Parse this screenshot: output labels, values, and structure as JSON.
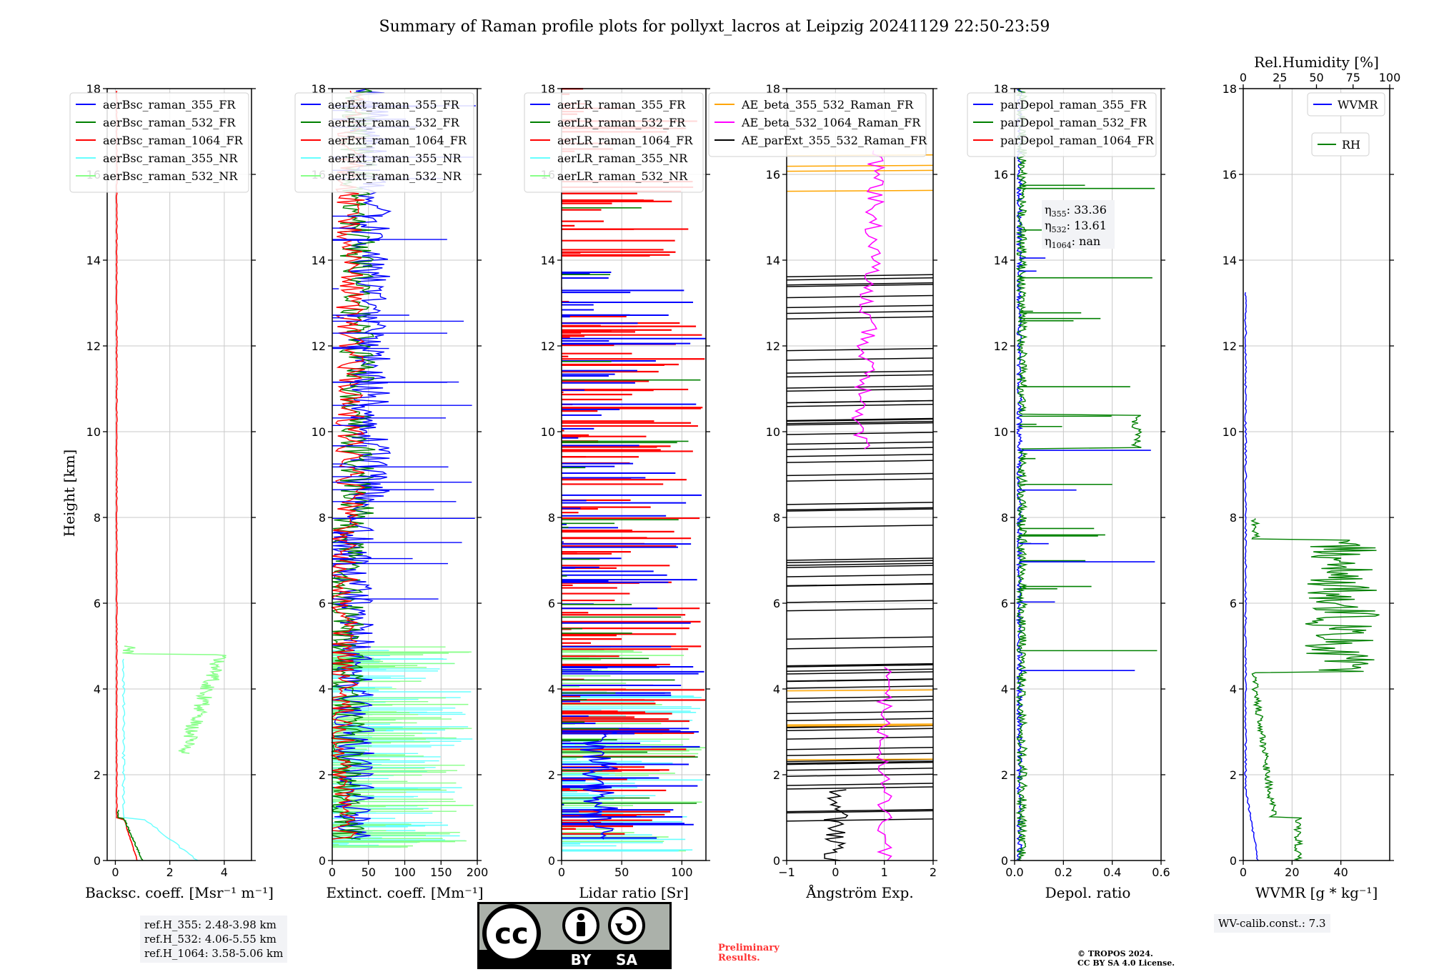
{
  "title": "Summary of Raman profile plots for pollyxt_lacros at Leipzig 20241129 22:50-23:59",
  "ylabel": "Height [km]",
  "y_ticks": [
    "0",
    "2",
    "4",
    "6",
    "8",
    "10",
    "12",
    "14",
    "16",
    "18"
  ],
  "chart_data": [
    {
      "type": "line",
      "xlabel": "Backsc. coeff. [Msr⁻¹ m⁻¹]",
      "xlim": [
        -0.3,
        5
      ],
      "ylim": [
        0,
        18
      ],
      "x_ticks": [
        "0",
        "2",
        "4"
      ],
      "x_tick_values": [
        0,
        2,
        4
      ],
      "legend": [
        "aerBsc_raman_355_FR",
        "aerBsc_raman_532_FR",
        "aerBsc_raman_1064_FR",
        "aerBsc_raman_355_NR",
        "aerBsc_raman_532_NR"
      ],
      "legend_colors": [
        "#0000ff",
        "#008000",
        "#ff0000",
        "#66ffff",
        "#88ff88"
      ],
      "grid": true
    },
    {
      "type": "line",
      "xlabel": "Extinct. coeff. [Mm⁻¹]",
      "xlim": [
        0,
        200
      ],
      "ylim": [
        0,
        18
      ],
      "x_ticks": [
        "0",
        "50",
        "100",
        "150",
        "200"
      ],
      "x_tick_values": [
        0,
        50,
        100,
        150,
        200
      ],
      "legend": [
        "aerExt_raman_355_FR",
        "aerExt_raman_532_FR",
        "aerExt_raman_1064_FR",
        "aerExt_raman_355_NR",
        "aerExt_raman_532_NR"
      ],
      "legend_colors": [
        "#0000ff",
        "#008000",
        "#ff0000",
        "#66ffff",
        "#88ff88"
      ],
      "grid": true
    },
    {
      "type": "line",
      "xlabel": "Lidar ratio [Sr]",
      "xlim": [
        0,
        120
      ],
      "ylim": [
        0,
        18
      ],
      "x_ticks": [
        "0",
        "50",
        "100"
      ],
      "x_tick_values": [
        0,
        50,
        100
      ],
      "legend": [
        "aerLR_raman_355_FR",
        "aerLR_raman_532_FR",
        "aerLR_raman_1064_FR",
        "aerLR_raman_355_NR",
        "aerLR_raman_532_NR"
      ],
      "legend_colors": [
        "#0000ff",
        "#008000",
        "#ff0000",
        "#66ffff",
        "#88ff88"
      ],
      "grid": true
    },
    {
      "type": "line",
      "xlabel": "Ångström Exp.",
      "xlim": [
        -1,
        2
      ],
      "ylim": [
        0,
        18
      ],
      "x_ticks": [
        "−1",
        "0",
        "1",
        "2"
      ],
      "x_tick_values": [
        -1,
        0,
        1,
        2
      ],
      "legend": [
        "AE_beta_355_532_Raman_FR",
        "AE_beta_532_1064_Raman_FR",
        "AE_parExt_355_532_Raman_FR"
      ],
      "legend_colors": [
        "#ffa500",
        "#ff00ff",
        "#000000"
      ],
      "grid": true
    },
    {
      "type": "line",
      "xlabel": "Depol. ratio",
      "xlim": [
        0,
        0.6
      ],
      "ylim": [
        0,
        18
      ],
      "x_ticks": [
        "0.0",
        "0.2",
        "0.4",
        "0.6"
      ],
      "x_tick_values": [
        0,
        0.2,
        0.4,
        0.6
      ],
      "legend": [
        "parDepol_raman_355_FR",
        "parDepol_raman_532_FR",
        "parDepol_raman_1064_FR"
      ],
      "legend_colors": [
        "#0000ff",
        "#008000",
        "#ff0000"
      ],
      "grid": true,
      "annotation": {
        "eta355": ": 33.36",
        "eta532": ": 13.61",
        "eta1064": ": nan"
      }
    },
    {
      "type": "line",
      "xlabel": "WVMR [g * kg⁻¹]",
      "xlim": [
        0,
        12
      ],
      "ylim": [
        0,
        18
      ],
      "x_ticks": [
        "0",
        "20",
        "40"
      ],
      "x_tick_values": [
        0,
        20,
        40
      ],
      "x_tick_scale": 60,
      "top_xlabel": "Rel.Humidity [%]",
      "top_ticks": [
        "0",
        "25",
        "50",
        "75",
        "100"
      ],
      "top_tick_values": [
        0,
        25,
        50,
        75,
        100
      ],
      "legend": [
        "WVMR",
        "RH"
      ],
      "legend_colors": [
        "#0000ff",
        "#008000"
      ],
      "grid": true
    }
  ],
  "ref_heights": [
    "ref.H_355: 2.48-3.98 km",
    "ref.H_532: 4.06-5.55 km",
    "ref.H_1064: 3.58-5.06 km"
  ],
  "wv_calib": "WV-calib.const.: 7.3",
  "preliminary": [
    "Preliminary",
    "Results."
  ],
  "copyright": [
    "© TROPOS 2024.",
    "CC BY SA 4.0 License."
  ],
  "license_badge": {
    "cc": "cc",
    "by": "BY",
    "sa": "SA"
  }
}
